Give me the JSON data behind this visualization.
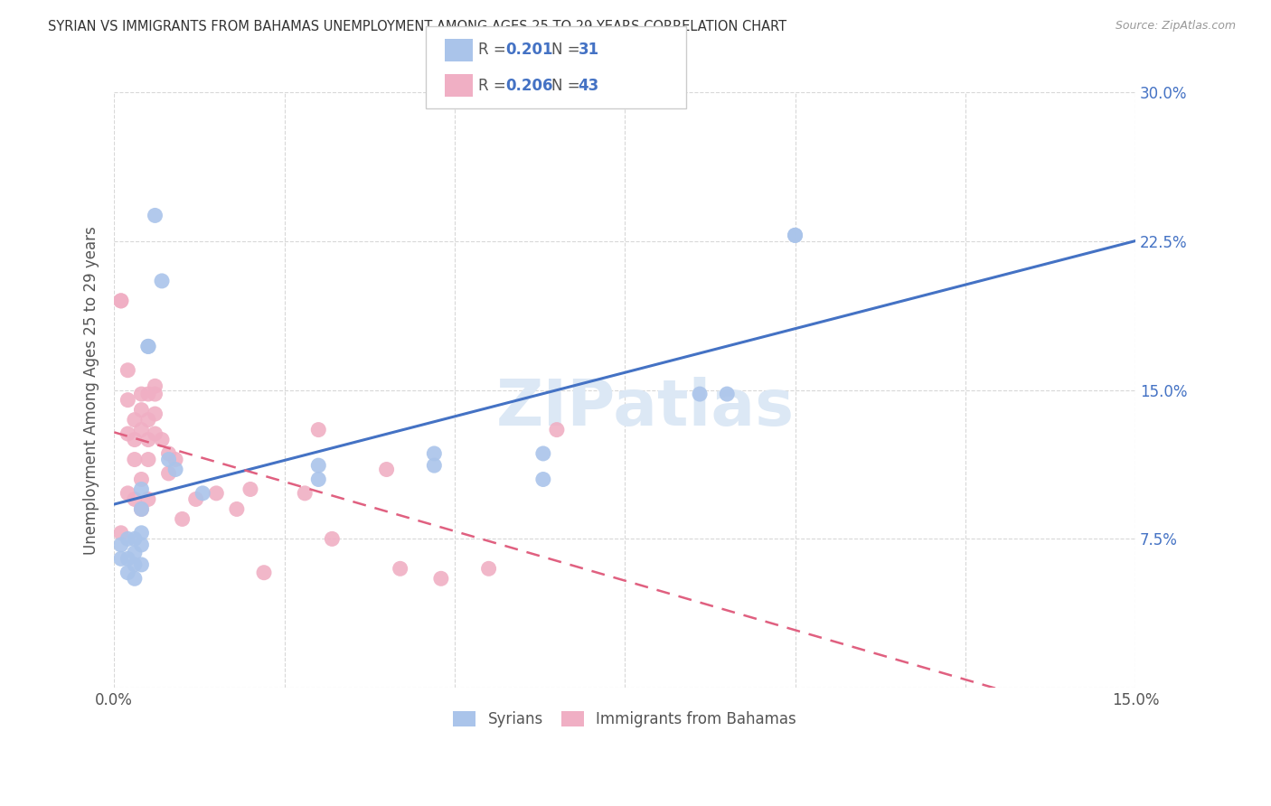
{
  "title": "SYRIAN VS IMMIGRANTS FROM BAHAMAS UNEMPLOYMENT AMONG AGES 25 TO 29 YEARS CORRELATION CHART",
  "source": "Source: ZipAtlas.com",
  "ylabel": "Unemployment Among Ages 25 to 29 years",
  "xlim": [
    0.0,
    0.15
  ],
  "ylim": [
    0.0,
    0.3
  ],
  "xticks": [
    0.0,
    0.025,
    0.05,
    0.075,
    0.1,
    0.125,
    0.15
  ],
  "yticks": [
    0.0,
    0.075,
    0.15,
    0.225,
    0.3
  ],
  "xtick_labels": [
    "0.0%",
    "",
    "",
    "",
    "",
    "",
    "15.0%"
  ],
  "ytick_labels": [
    "",
    "7.5%",
    "15.0%",
    "22.5%",
    "30.0%"
  ],
  "watermark": "ZIPatlas",
  "legend_r1": "0.201",
  "legend_n1": "31",
  "legend_r2": "0.206",
  "legend_n2": "43",
  "syrians_x": [
    0.001,
    0.001,
    0.002,
    0.002,
    0.002,
    0.003,
    0.003,
    0.003,
    0.003,
    0.004,
    0.004,
    0.004,
    0.004,
    0.004,
    0.005,
    0.005,
    0.006,
    0.007,
    0.008,
    0.009,
    0.013,
    0.03,
    0.03,
    0.047,
    0.047,
    0.063,
    0.063,
    0.086,
    0.09,
    0.1,
    0.1
  ],
  "syrians_y": [
    0.072,
    0.065,
    0.075,
    0.065,
    0.058,
    0.075,
    0.068,
    0.062,
    0.055,
    0.1,
    0.09,
    0.078,
    0.072,
    0.062,
    0.172,
    0.172,
    0.238,
    0.205,
    0.115,
    0.11,
    0.098,
    0.112,
    0.105,
    0.118,
    0.112,
    0.118,
    0.105,
    0.148,
    0.148,
    0.228,
    0.228
  ],
  "bahamas_x": [
    0.001,
    0.001,
    0.001,
    0.002,
    0.002,
    0.002,
    0.002,
    0.003,
    0.003,
    0.003,
    0.003,
    0.004,
    0.004,
    0.004,
    0.004,
    0.004,
    0.005,
    0.005,
    0.005,
    0.005,
    0.005,
    0.006,
    0.006,
    0.006,
    0.006,
    0.007,
    0.008,
    0.008,
    0.009,
    0.01,
    0.012,
    0.015,
    0.018,
    0.02,
    0.022,
    0.028,
    0.03,
    0.032,
    0.04,
    0.042,
    0.048,
    0.055,
    0.065
  ],
  "bahamas_y": [
    0.195,
    0.195,
    0.078,
    0.16,
    0.145,
    0.128,
    0.098,
    0.135,
    0.125,
    0.115,
    0.095,
    0.148,
    0.14,
    0.13,
    0.105,
    0.09,
    0.148,
    0.135,
    0.125,
    0.115,
    0.095,
    0.152,
    0.148,
    0.138,
    0.128,
    0.125,
    0.118,
    0.108,
    0.115,
    0.085,
    0.095,
    0.098,
    0.09,
    0.1,
    0.058,
    0.098,
    0.13,
    0.075,
    0.11,
    0.06,
    0.055,
    0.06,
    0.13
  ],
  "syrian_color": "#aac4ea",
  "bahamas_color": "#f0afc4",
  "syrian_line_color": "#4472c4",
  "bahamas_line_color": "#e06080",
  "background_color": "#ffffff",
  "grid_color": "#d8d8d8"
}
